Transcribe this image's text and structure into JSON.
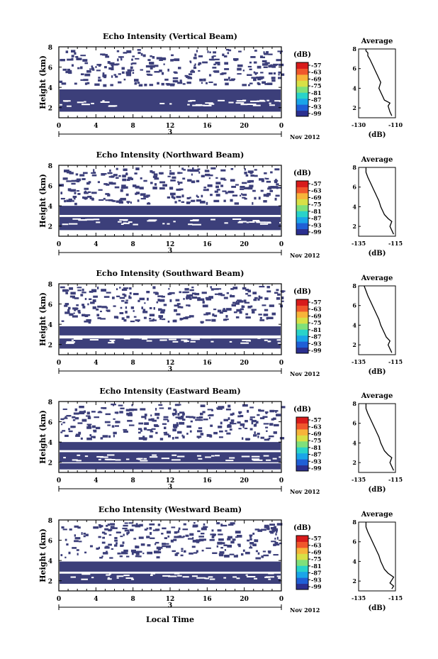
{
  "chart_data": [
    {
      "type": "heatmap",
      "title": "Echo Intensity (Vertical Beam)",
      "ylabel": "Height (km)",
      "x_ticks": [
        "0",
        "4",
        "8",
        "12",
        "16",
        "20",
        "0"
      ],
      "ylim": [
        1,
        8
      ],
      "y_ticks": [
        "2",
        "4",
        "6",
        "8"
      ],
      "date_label": "3",
      "date_suffix": "Nov 2012",
      "colorbar": {
        "label": "(dB)",
        "ticks": [
          "-57",
          "-63",
          "-69",
          "-75",
          "-81",
          "-87",
          "-93",
          "-99"
        ]
      },
      "bands": [
        {
          "ylo": 1.6,
          "yhi": 3.8
        }
      ],
      "average_profile": {
        "title": "Average",
        "xlabel": "(dB)",
        "xticks": [
          "-130",
          "-110"
        ],
        "xlim": [
          -130,
          -110
        ],
        "ylim": [
          1,
          8
        ],
        "y_ticks": [
          "2",
          "4",
          "6",
          "8"
        ],
        "x": [
          -112,
          -113,
          -114,
          -113,
          -116,
          -117,
          -118,
          -119,
          -118,
          -119,
          -120,
          -121,
          -122,
          -123,
          -124,
          -125,
          -125,
          -126,
          -126
        ],
        "y": [
          1.2,
          1.6,
          2.2,
          2.5,
          2.8,
          3.2,
          3.6,
          4.0,
          4.6,
          5.0,
          5.4,
          5.8,
          6.2,
          6.6,
          7.0,
          7.3,
          7.6,
          7.8,
          8.0
        ]
      }
    },
    {
      "type": "heatmap",
      "title": "Echo Intensity (Northward Beam)",
      "ylabel": "Height (km)",
      "x_ticks": [
        "0",
        "4",
        "8",
        "12",
        "16",
        "20",
        "0"
      ],
      "ylim": [
        1,
        8
      ],
      "y_ticks": [
        "2",
        "4",
        "6",
        "8"
      ],
      "date_label": "3",
      "date_suffix": "Nov 2012",
      "colorbar": {
        "label": "(dB)",
        "ticks": [
          "-57",
          "-63",
          "-69",
          "-75",
          "-81",
          "-87",
          "-93",
          "-99"
        ]
      },
      "bands": [
        {
          "ylo": 3.1,
          "yhi": 4.0
        },
        {
          "ylo": 1.6,
          "yhi": 2.9
        }
      ],
      "average_profile": {
        "title": "Average",
        "xlabel": "(dB)",
        "xticks": [
          "-135",
          "-115"
        ],
        "xlim": [
          -135,
          -115
        ],
        "ylim": [
          1,
          8
        ],
        "y_ticks": [
          "2",
          "4",
          "6",
          "8"
        ],
        "x": [
          -116,
          -117,
          -118,
          -117,
          -119,
          -121,
          -122,
          -123,
          -124,
          -125,
          -126,
          -127,
          -128,
          -129,
          -130,
          -131,
          -131
        ],
        "y": [
          1.2,
          1.6,
          2.0,
          2.5,
          2.8,
          3.2,
          3.6,
          4.0,
          4.6,
          5.0,
          5.4,
          5.8,
          6.2,
          6.6,
          7.0,
          7.5,
          8.0
        ]
      }
    },
    {
      "type": "heatmap",
      "title": "Echo Intensity (Southward Beam)",
      "ylabel": "Height (km)",
      "x_ticks": [
        "0",
        "4",
        "8",
        "12",
        "16",
        "20",
        "0"
      ],
      "ylim": [
        1,
        8
      ],
      "y_ticks": [
        "2",
        "4",
        "6",
        "8"
      ],
      "date_label": "3",
      "date_suffix": "Nov 2012",
      "colorbar": {
        "label": "(dB)",
        "ticks": [
          "-57",
          "-63",
          "-69",
          "-75",
          "-81",
          "-87",
          "-93",
          "-99"
        ]
      },
      "bands": [
        {
          "ylo": 2.9,
          "yhi": 3.8
        },
        {
          "ylo": 1.6,
          "yhi": 2.6
        }
      ],
      "average_profile": {
        "title": "Average",
        "xlabel": "(dB)",
        "xticks": [
          "-135",
          "-115"
        ],
        "xlim": [
          -135,
          -115
        ],
        "ylim": [
          1,
          8
        ],
        "y_ticks": [
          "2",
          "4",
          "6",
          "8"
        ],
        "x": [
          -117,
          -118,
          -119,
          -118,
          -120,
          -121,
          -122,
          -123,
          -124,
          -125,
          -126,
          -127,
          -128,
          -129,
          -130,
          -131,
          -132
        ],
        "y": [
          1.2,
          1.6,
          2.0,
          2.4,
          2.8,
          3.2,
          3.6,
          4.0,
          4.6,
          5.0,
          5.4,
          5.8,
          6.2,
          6.6,
          7.0,
          7.5,
          8.0
        ]
      }
    },
    {
      "type": "heatmap",
      "title": "Echo Intensity (Eastward Beam)",
      "ylabel": "Height (km)",
      "x_ticks": [
        "0",
        "4",
        "8",
        "12",
        "16",
        "20",
        "0"
      ],
      "ylim": [
        1,
        8
      ],
      "y_ticks": [
        "2",
        "4",
        "6",
        "8"
      ],
      "date_label": "3",
      "date_suffix": "Nov 2012",
      "colorbar": {
        "label": "(dB)",
        "ticks": [
          "-57",
          "-63",
          "-69",
          "-75",
          "-81",
          "-87",
          "-93",
          "-99"
        ]
      },
      "bands": [
        {
          "ylo": 3.2,
          "yhi": 4.0
        },
        {
          "ylo": 2.0,
          "yhi": 3.0
        },
        {
          "ylo": 1.3,
          "yhi": 1.9
        }
      ],
      "average_profile": {
        "title": "Average",
        "xlabel": "(dB)",
        "xticks": [
          "-135",
          "-115"
        ],
        "xlim": [
          -135,
          -115
        ],
        "ylim": [
          1,
          8
        ],
        "y_ticks": [
          "2",
          "4",
          "6",
          "8"
        ],
        "x": [
          -116,
          -117,
          -118,
          -117,
          -119,
          -121,
          -122,
          -123,
          -124,
          -125,
          -126,
          -127,
          -128,
          -129,
          -130,
          -131,
          -131
        ],
        "y": [
          1.2,
          1.6,
          2.0,
          2.5,
          2.8,
          3.2,
          3.6,
          4.0,
          4.6,
          5.0,
          5.4,
          5.8,
          6.2,
          6.6,
          7.0,
          7.5,
          8.0
        ]
      }
    },
    {
      "type": "heatmap",
      "title": "Echo Intensity (Westward Beam)",
      "ylabel": "Height (km)",
      "x_ticks": [
        "0",
        "4",
        "8",
        "12",
        "16",
        "20",
        "0"
      ],
      "ylim": [
        1,
        8
      ],
      "y_ticks": [
        "2",
        "4",
        "6",
        "8"
      ],
      "date_label": "3",
      "date_suffix": "Nov 2012",
      "x_axis_label": "Local Time",
      "colorbar": {
        "label": "(dB)",
        "ticks": [
          "-57",
          "-63",
          "-69",
          "-75",
          "-81",
          "-87",
          "-93",
          "-99"
        ]
      },
      "bands": [
        {
          "ylo": 2.9,
          "yhi": 3.9
        },
        {
          "ylo": 1.7,
          "yhi": 2.7
        }
      ],
      "average_profile": {
        "title": "Average",
        "xlabel": "(dB)",
        "xticks": [
          "-135",
          "-115"
        ],
        "xlim": [
          -135,
          -115
        ],
        "ylim": [
          1,
          8
        ],
        "y_ticks": [
          "2",
          "4",
          "6",
          "8"
        ],
        "x": [
          -117,
          -116,
          -118,
          -117,
          -116,
          -119,
          -121,
          -122,
          -123,
          -124,
          -125,
          -126,
          -127,
          -128,
          -129,
          -130,
          -131,
          -131
        ],
        "y": [
          1.2,
          1.5,
          1.8,
          2.1,
          2.4,
          2.8,
          3.2,
          3.6,
          4.0,
          4.6,
          5.0,
          5.4,
          5.8,
          6.2,
          6.6,
          7.0,
          7.5,
          8.0
        ]
      }
    }
  ],
  "colors": {
    "band": "#3c3f7a",
    "scatter": "#3c3f7a",
    "colorbar": [
      "#2b2f8f",
      "#1f5fd6",
      "#1aa5e8",
      "#29d3c9",
      "#7fe07a",
      "#d8e046",
      "#f7b43a",
      "#f0572c",
      "#d81b1b"
    ]
  }
}
